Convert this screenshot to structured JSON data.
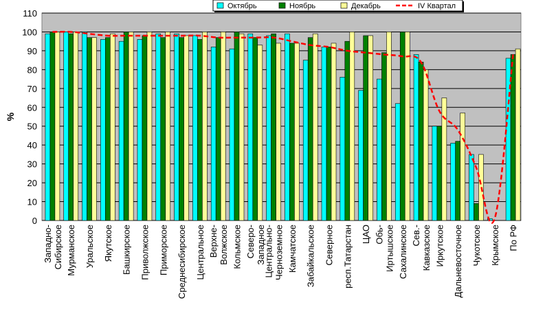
{
  "chart_data": {
    "type": "bar",
    "ylabel": "%",
    "xlabel": "",
    "ylim": [
      0,
      110
    ],
    "yticks": [
      0,
      10,
      20,
      30,
      40,
      50,
      60,
      70,
      80,
      90,
      100,
      110
    ],
    "grid": true,
    "legend": "top",
    "categories": [
      "Западно-Сибирское",
      "Мурманское",
      "Уральское",
      "Якутское",
      "Башкирское",
      "Приволжское",
      "Приморское",
      "Среднесибирское",
      "Центральное",
      "Верхне-Волжское",
      "Кольмское",
      "Северо-Западное",
      "Центрально-Черноземное",
      "Камчатское",
      "Забайкальское",
      "Северное",
      "респ.Татарстан",
      "ЦАО",
      "Обь-Иртышское",
      "Сахалинское",
      "Сев.-Кавказское",
      "Иркутское",
      "Дальневосточное",
      "Чукотское",
      "Крымское",
      "По РФ"
    ],
    "category_lines": [
      [
        "Западно-",
        "Сибирское"
      ],
      [
        "Мурманское"
      ],
      [
        "Уральское"
      ],
      [
        "Якутское"
      ],
      [
        "Башкирское"
      ],
      [
        "Приволжское"
      ],
      [
        "Приморское"
      ],
      [
        "Среднесибирское"
      ],
      [
        "Центральное"
      ],
      [
        "Верхне-",
        "Волжское"
      ],
      [
        "Кольмское"
      ],
      [
        "Северо-",
        "Западное"
      ],
      [
        "Центрально-",
        "Черноземное"
      ],
      [
        "Камчатское"
      ],
      [
        "Забайкальское"
      ],
      [
        "Северное"
      ],
      [
        "респ.Татарстан"
      ],
      [
        "ЦАО"
      ],
      [
        "Обь-",
        "Иртышское"
      ],
      [
        "Сахалинское"
      ],
      [
        "Сев.-",
        "Кавказское"
      ],
      [
        "Иркутское"
      ],
      [
        "Дальневосточное"
      ],
      [
        "Чукотское"
      ],
      [
        "Крымское"
      ],
      [
        "По РФ"
      ]
    ],
    "series": [
      {
        "name": "Октябрь",
        "color": "#00ffff",
        "kind": "bar",
        "values": [
          99,
          100,
          100,
          96,
          95,
          96,
          99,
          99,
          98,
          92,
          91,
          99,
          98,
          99,
          85,
          92,
          76,
          69,
          75,
          62,
          88,
          50,
          41,
          35,
          1,
          86
        ]
      },
      {
        "name": "Ноябрь",
        "color": "#008000",
        "kind": "bar",
        "values": [
          100,
          99,
          97,
          97,
          100,
          98,
          97,
          97,
          96,
          97,
          100,
          97,
          99,
          94,
          97,
          92,
          95,
          98,
          89,
          100,
          84,
          50,
          42,
          9,
          0,
          88
        ]
      },
      {
        "name": "Декабрь",
        "color": "#ffff99",
        "kind": "bar",
        "values": [
          100,
          100,
          97,
          99,
          100,
          100,
          100,
          98,
          100,
          100,
          99,
          93,
          94,
          94,
          99,
          94,
          100,
          98,
          100,
          100,
          80,
          65,
          57,
          35,
          0,
          91
        ]
      },
      {
        "name": "IV Квартал",
        "color": "#ff0000",
        "kind": "line",
        "values": [
          100,
          100,
          99,
          98,
          98,
          98,
          98,
          98,
          98,
          97,
          97,
          97,
          97,
          95,
          93,
          92,
          90,
          89,
          88,
          87,
          84,
          58,
          48,
          28,
          1,
          88
        ]
      }
    ]
  }
}
